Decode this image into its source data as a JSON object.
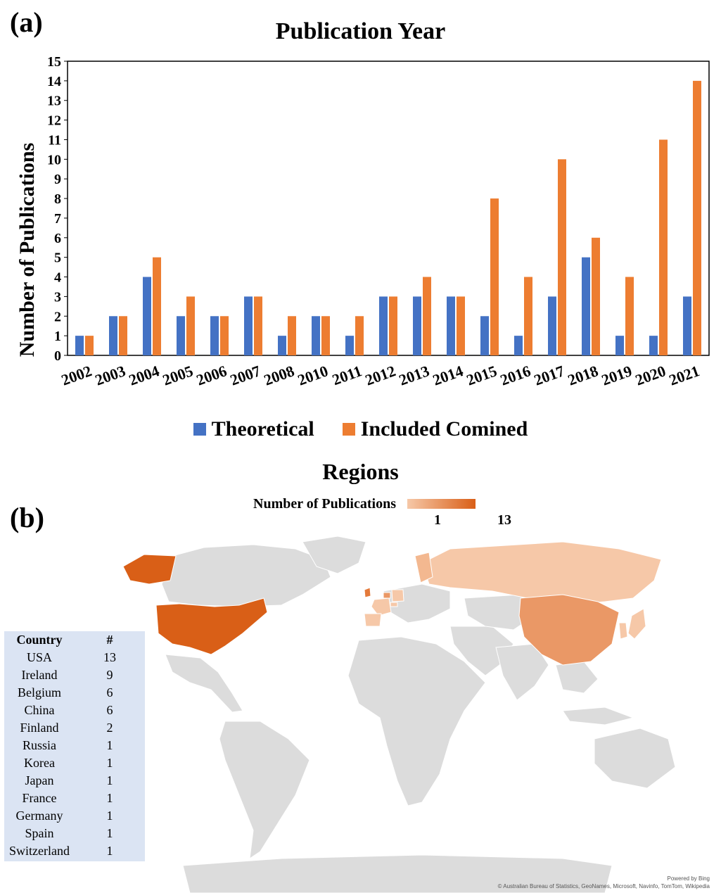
{
  "panel_a_label": "(a)",
  "panel_b_label": "(b)",
  "chart_data": {
    "type": "bar",
    "title": "Publication Year",
    "ylabel": "Number of Publications",
    "xlabel": "",
    "ylim": [
      0,
      15
    ],
    "yticks": [
      0,
      1,
      2,
      3,
      4,
      5,
      6,
      7,
      8,
      9,
      10,
      11,
      12,
      13,
      14,
      15
    ],
    "categories": [
      "2002",
      "2003",
      "2004",
      "2005",
      "2006",
      "2007",
      "2008",
      "2010",
      "2011",
      "2012",
      "2013",
      "2014",
      "2015",
      "2016",
      "2017",
      "2018",
      "2019",
      "2020",
      "2021"
    ],
    "series": [
      {
        "name": "Theoretical",
        "color": "#4472c4",
        "values": [
          1,
          2,
          4,
          2,
          2,
          3,
          1,
          2,
          1,
          3,
          3,
          3,
          2,
          1,
          3,
          5,
          1,
          1,
          3
        ]
      },
      {
        "name": "Included Comined",
        "color": "#ed7d31",
        "values": [
          1,
          2,
          5,
          3,
          2,
          3,
          2,
          2,
          2,
          3,
          4,
          3,
          8,
          4,
          10,
          6,
          4,
          11,
          14
        ]
      }
    ],
    "legend_position": "bottom",
    "grid": false
  },
  "map": {
    "title": "Regions",
    "legend_label": "Number of Publications",
    "scale_min": "1",
    "scale_max": "13",
    "color_min": "#f6c8a8",
    "color_max": "#d95f17",
    "credit_line1": "Powered by Bing",
    "credit_line2": "© Australian Bureau of Statistics, GeoNames, Microsoft, Navinfo, TomTom, Wikipedia",
    "table_headers": [
      "Country",
      "#"
    ],
    "countries": [
      {
        "name": "USA",
        "count": "13"
      },
      {
        "name": "Ireland",
        "count": "9"
      },
      {
        "name": "Belgium",
        "count": "6"
      },
      {
        "name": "China",
        "count": "6"
      },
      {
        "name": "Finland",
        "count": "2"
      },
      {
        "name": "Russia",
        "count": "1"
      },
      {
        "name": "Korea",
        "count": "1"
      },
      {
        "name": "Japan",
        "count": "1"
      },
      {
        "name": "France",
        "count": "1"
      },
      {
        "name": "Germany",
        "count": "1"
      },
      {
        "name": "Spain",
        "count": "1"
      },
      {
        "name": "Switzerland",
        "count": "1"
      }
    ]
  }
}
